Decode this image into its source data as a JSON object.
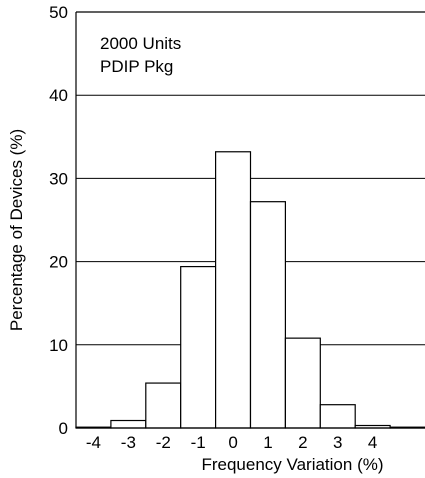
{
  "chart_data": {
    "type": "bar",
    "bins": [
      {
        "from": -4.5,
        "to": -3.5,
        "value": 0.1
      },
      {
        "from": -3.5,
        "to": -2.5,
        "value": 0.9
      },
      {
        "from": -2.5,
        "to": -1.5,
        "value": 5.4
      },
      {
        "from": -1.5,
        "to": -0.5,
        "value": 19.4
      },
      {
        "from": -0.5,
        "to": 0.5,
        "value": 33.2
      },
      {
        "from": 0.5,
        "to": 1.5,
        "value": 27.2
      },
      {
        "from": 1.5,
        "to": 2.5,
        "value": 10.8
      },
      {
        "from": 2.5,
        "to": 3.5,
        "value": 2.8
      },
      {
        "from": 3.5,
        "to": 4.5,
        "value": 0.3
      },
      {
        "from": 4.5,
        "to": 5.5,
        "value": 0.1
      }
    ],
    "xlabel": "Frequency Variation (%)",
    "ylabel": "Percentage of Devices (%)",
    "xlim": [
      -4.5,
      5.5
    ],
    "ylim": [
      0,
      50
    ],
    "xticks": [
      "-4",
      "-3",
      "-2",
      "-1",
      "0",
      "1",
      "2",
      "3",
      "4"
    ],
    "yticks": [
      "0",
      "10",
      "20",
      "30",
      "40",
      "50"
    ],
    "grid": "horizontal",
    "annotation": [
      "2000 Units",
      "PDIP Pkg"
    ]
  }
}
